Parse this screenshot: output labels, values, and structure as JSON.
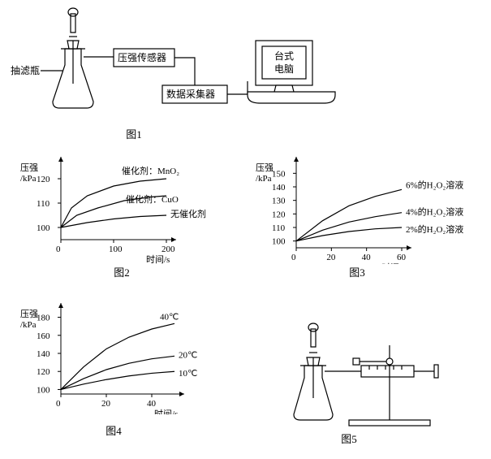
{
  "fig1": {
    "caption": "图1",
    "labels": {
      "flask": "抽滤瓶",
      "sensor": "压强传感器",
      "collector": "数据采集器",
      "computer_line1": "台式",
      "computer_line2": "电脑"
    },
    "colors": {
      "stroke": "#000000",
      "bg": "#ffffff"
    }
  },
  "fig2": {
    "caption": "图2",
    "type": "line",
    "xlabel": "时间/s",
    "ylabel_line1": "压强",
    "ylabel_line2": "/kPa",
    "xlim": [
      0,
      200
    ],
    "ylim": [
      95,
      125
    ],
    "xticks": [
      0,
      100,
      200
    ],
    "yticks": [
      100,
      110,
      120
    ],
    "series": [
      {
        "label": "催化剂：MnO₂",
        "points": [
          [
            0,
            100
          ],
          [
            20,
            108
          ],
          [
            50,
            113
          ],
          [
            100,
            117
          ],
          [
            150,
            119
          ],
          [
            200,
            120
          ]
        ]
      },
      {
        "label": "催化剂：CuO",
        "points": [
          [
            0,
            100
          ],
          [
            30,
            105
          ],
          [
            70,
            108
          ],
          [
            120,
            111
          ],
          [
            170,
            112.5
          ],
          [
            200,
            113
          ]
        ]
      },
      {
        "label": "无催化剂",
        "points": [
          [
            0,
            100
          ],
          [
            50,
            102
          ],
          [
            100,
            103.5
          ],
          [
            150,
            104.5
          ],
          [
            200,
            105
          ]
        ]
      }
    ],
    "stroke": "#000000",
    "bg": "#ffffff",
    "fontsize": 11
  },
  "fig3": {
    "caption": "图3",
    "type": "line",
    "xlabel": "时间/s",
    "ylabel_line1": "压强",
    "ylabel_line2": "/kPa",
    "xlim": [
      0,
      60
    ],
    "ylim": [
      95,
      155
    ],
    "xticks": [
      0,
      20,
      40,
      60
    ],
    "yticks": [
      100,
      110,
      120,
      130,
      140,
      150
    ],
    "series": [
      {
        "label": "6%的H₂O₂溶液",
        "points": [
          [
            0,
            100
          ],
          [
            15,
            115
          ],
          [
            30,
            126
          ],
          [
            45,
            133
          ],
          [
            60,
            138
          ]
        ]
      },
      {
        "label": "4%的H₂O₂溶液",
        "points": [
          [
            0,
            100
          ],
          [
            15,
            108
          ],
          [
            30,
            114
          ],
          [
            45,
            118
          ],
          [
            60,
            121
          ]
        ]
      },
      {
        "label": "2%的H₂O₂溶液",
        "points": [
          [
            0,
            100
          ],
          [
            15,
            104
          ],
          [
            30,
            107
          ],
          [
            45,
            109
          ],
          [
            60,
            110
          ]
        ]
      }
    ],
    "stroke": "#000000",
    "bg": "#ffffff",
    "fontsize": 11
  },
  "fig4": {
    "caption": "图4",
    "type": "line",
    "xlabel": "时间/s",
    "ylabel_line1": "压强",
    "ylabel_line2": "/kPa",
    "xlim": [
      0,
      50
    ],
    "ylim": [
      95,
      185
    ],
    "xticks": [
      0,
      20,
      40
    ],
    "yticks": [
      100,
      120,
      140,
      160,
      180
    ],
    "series": [
      {
        "label": "40℃",
        "points": [
          [
            0,
            100
          ],
          [
            10,
            125
          ],
          [
            20,
            145
          ],
          [
            30,
            158
          ],
          [
            40,
            167
          ],
          [
            50,
            173
          ]
        ]
      },
      {
        "label": "20℃",
        "points": [
          [
            0,
            100
          ],
          [
            10,
            112
          ],
          [
            20,
            122
          ],
          [
            30,
            129
          ],
          [
            40,
            134
          ],
          [
            50,
            137
          ]
        ]
      },
      {
        "label": "10℃",
        "points": [
          [
            0,
            100
          ],
          [
            10,
            106
          ],
          [
            20,
            111
          ],
          [
            30,
            115
          ],
          [
            40,
            118
          ],
          [
            50,
            120
          ]
        ]
      }
    ],
    "stroke": "#000000",
    "bg": "#ffffff",
    "fontsize": 11
  },
  "fig5": {
    "caption": "图5",
    "colors": {
      "stroke": "#000000",
      "bg": "#ffffff"
    }
  }
}
